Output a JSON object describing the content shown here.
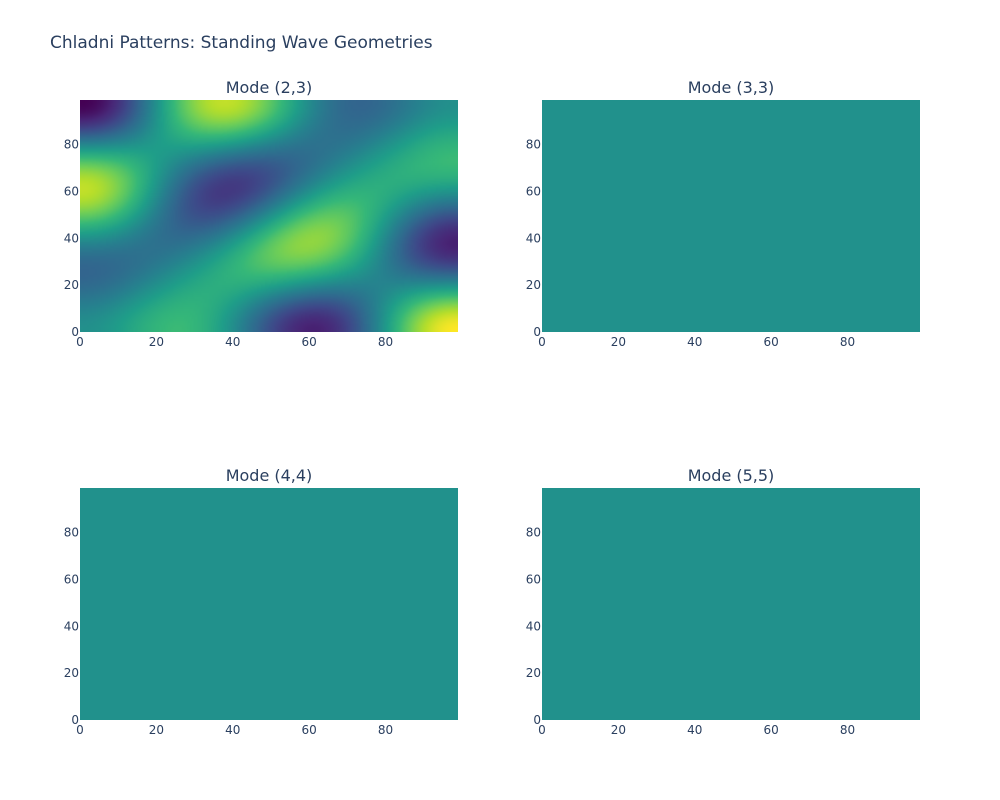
{
  "title": "Chladni Patterns: Standing Wave Geometries",
  "colors": {
    "background": "#ffffff",
    "text": "#2a3f5f",
    "flat_fill": "#21918c",
    "colorscale": [
      "#440154",
      "#482878",
      "#3e4989",
      "#31688e",
      "#26828e",
      "#1f9e89",
      "#35b779",
      "#6ece58",
      "#b5de2b",
      "#fde725"
    ]
  },
  "chart_data": [
    {
      "type": "heatmap",
      "title": "Mode (2,3)",
      "colorscale": "viridis",
      "mode": [
        2,
        3
      ],
      "pattern": "varying",
      "xlim": [
        0,
        99
      ],
      "ylim": [
        0,
        99
      ],
      "x_ticks": [
        "0",
        "20",
        "40",
        "60",
        "80"
      ],
      "y_ticks": [
        "0",
        "20",
        "40",
        "60",
        "80"
      ]
    },
    {
      "type": "heatmap",
      "title": "Mode (3,3)",
      "colorscale": "viridis",
      "mode": [
        3,
        3
      ],
      "pattern": "uniform",
      "xlim": [
        0,
        99
      ],
      "ylim": [
        0,
        99
      ],
      "x_ticks": [
        "0",
        "20",
        "40",
        "60",
        "80"
      ],
      "y_ticks": [
        "0",
        "20",
        "40",
        "60",
        "80"
      ]
    },
    {
      "type": "heatmap",
      "title": "Mode (4,4)",
      "colorscale": "viridis",
      "mode": [
        4,
        4
      ],
      "pattern": "uniform",
      "xlim": [
        0,
        99
      ],
      "ylim": [
        0,
        99
      ],
      "x_ticks": [
        "0",
        "20",
        "40",
        "60",
        "80"
      ],
      "y_ticks": [
        "0",
        "20",
        "40",
        "60",
        "80"
      ]
    },
    {
      "type": "heatmap",
      "title": "Mode (5,5)",
      "colorscale": "viridis",
      "mode": [
        5,
        5
      ],
      "pattern": "uniform",
      "xlim": [
        0,
        99
      ],
      "ylim": [
        0,
        99
      ],
      "x_ticks": [
        "0",
        "20",
        "40",
        "60",
        "80"
      ],
      "y_ticks": [
        "0",
        "20",
        "40",
        "60",
        "80"
      ]
    }
  ]
}
